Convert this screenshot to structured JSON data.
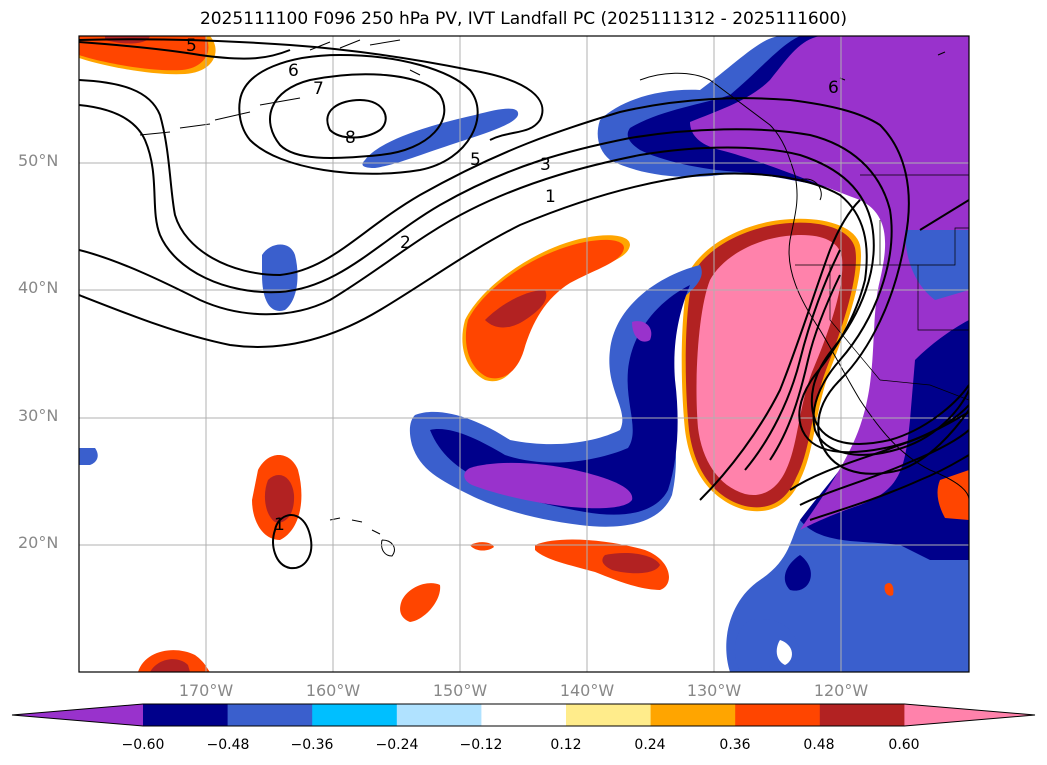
{
  "title": "2025111100 F096 250 hPa PV, IVT Landfall PC (2025111312 - 2025111600)",
  "map": {
    "lat_labels": [
      "50°N",
      "40°N",
      "30°N",
      "20°N"
    ],
    "lon_labels": [
      "170°W",
      "160°W",
      "150°W",
      "140°W",
      "130°W",
      "120°W"
    ],
    "contour_labels": [
      "5",
      "6",
      "7",
      "8",
      "5",
      "3",
      "1",
      "2",
      "6",
      "1"
    ]
  },
  "colorbar": {
    "colors": [
      "#9932cc",
      "#00008b",
      "#3a5fcd",
      "#00bfff",
      "#b0e2ff",
      "#ffffff",
      "#ffec8b",
      "#ffa500",
      "#ff4500",
      "#b22222",
      "#ff82ab"
    ],
    "ticks": [
      "−0.60",
      "−0.48",
      "−0.36",
      "−0.24",
      "−0.12",
      "0.12",
      "0.24",
      "0.36",
      "0.48",
      "0.60"
    ]
  }
}
